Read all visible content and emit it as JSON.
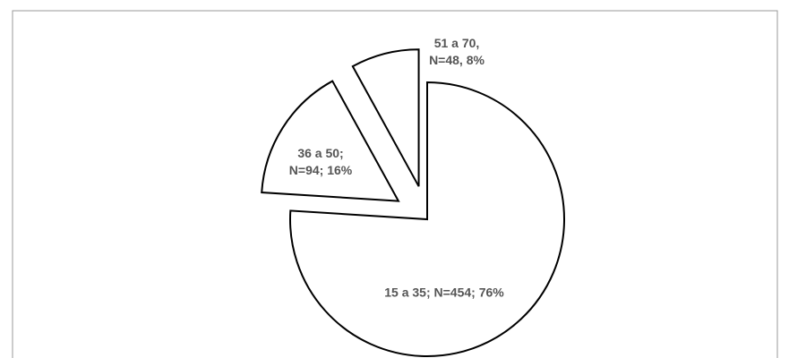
{
  "chart_data": {
    "type": "pie",
    "values": [
      76,
      16,
      8
    ],
    "value_labels": [
      "15 a 35; N=454; 76%",
      "36 a 50;\nN=94; 16%",
      "51 a 70,\nN=48, 8%"
    ],
    "exploded": [
      false,
      true,
      true
    ],
    "color": "#ffffff",
    "edge_color": "#000000"
  }
}
